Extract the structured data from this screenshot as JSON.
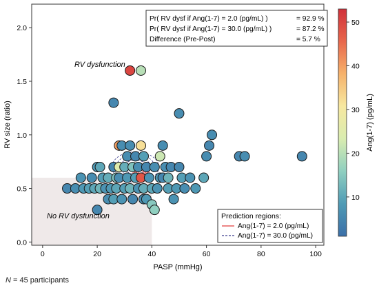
{
  "chart_data": {
    "type": "scatter",
    "xlabel": "PASP (mmHg)",
    "ylabel": "RV size (ratio)",
    "xlim": [
      -4,
      103
    ],
    "ylim": [
      -0.03,
      2.22
    ],
    "xticks": [
      "0",
      "20",
      "40",
      "60",
      "80",
      "100"
    ],
    "yticks": [
      "0.0",
      "0.5",
      "1.0",
      "1.5",
      "2.0"
    ],
    "grid": false,
    "annotations": {
      "rv_dysfunction": "RV dysfunction",
      "no_rv_dysfunction": "No RV dysfunction"
    },
    "probability_box": {
      "rows": [
        {
          "label": "Pr( RV dysf if Ang(1-7) = 2.0 (pg/mL) )",
          "value": "= 92.9 %"
        },
        {
          "label": "Pr( RV dysf if Ang(1-7) = 30.0 (pg/mL) )",
          "value": "= 87.2 %"
        },
        {
          "label": "Difference (Pre-Post)",
          "value": "= 5.7 %"
        }
      ]
    },
    "legend": {
      "title": "Prediction regions:",
      "placement": "bottom-right",
      "items": [
        {
          "label": "Ang(1-7) = 2.0 (pg/mL)",
          "color": "#e03c3c",
          "style": "solid"
        },
        {
          "label": "Ang(1-7) = 30.0 (pg/mL)",
          "color": "#3a3a8c",
          "style": "dashed"
        }
      ]
    },
    "colorbar": {
      "label": "Ang(1-7) (pg/mL)",
      "min": 1,
      "max": 53,
      "ticks": [
        "10",
        "20",
        "30",
        "40",
        "50"
      ],
      "colors": [
        "#3b6fa8",
        "#4f9bb5",
        "#8fcfc0",
        "#d9ecb0",
        "#f7e8a0",
        "#f6b26b",
        "#e8674c",
        "#d0303a"
      ]
    },
    "normal_region": {
      "x": [
        -4,
        40
      ],
      "y": [
        -0.03,
        0.6
      ],
      "color": "#efe9e9"
    },
    "contours": {
      "red_center": [
        36,
        0.65
      ],
      "blue_center": [
        34,
        0.7
      ]
    },
    "points": [
      {
        "x": 9,
        "y": 0.5,
        "c": 5
      },
      {
        "x": 12,
        "y": 0.5,
        "c": 6
      },
      {
        "x": 14,
        "y": 0.6,
        "c": 7
      },
      {
        "x": 15,
        "y": 0.5,
        "c": 8
      },
      {
        "x": 17,
        "y": 0.5,
        "c": 9
      },
      {
        "x": 18,
        "y": 0.6,
        "c": 6
      },
      {
        "x": 19,
        "y": 0.5,
        "c": 10
      },
      {
        "x": 20,
        "y": 0.3,
        "c": 5
      },
      {
        "x": 20,
        "y": 0.7,
        "c": 8
      },
      {
        "x": 21,
        "y": 0.5,
        "c": 12
      },
      {
        "x": 21,
        "y": 0.7,
        "c": 10
      },
      {
        "x": 22,
        "y": 0.6,
        "c": 9
      },
      {
        "x": 23,
        "y": 0.5,
        "c": 7
      },
      {
        "x": 24,
        "y": 0.6,
        "c": 11
      },
      {
        "x": 24,
        "y": 0.4,
        "c": 6
      },
      {
        "x": 25,
        "y": 0.5,
        "c": 8
      },
      {
        "x": 26,
        "y": 0.7,
        "c": 5
      },
      {
        "x": 26,
        "y": 1.3,
        "c": 5
      },
      {
        "x": 26,
        "y": 0.4,
        "c": 9
      },
      {
        "x": 27,
        "y": 0.6,
        "c": 14
      },
      {
        "x": 27,
        "y": 0.5,
        "c": 10
      },
      {
        "x": 28,
        "y": 0.9,
        "c": 40
      },
      {
        "x": 28,
        "y": 0.7,
        "c": 25
      },
      {
        "x": 28,
        "y": 0.6,
        "c": 6
      },
      {
        "x": 29,
        "y": 0.9,
        "c": 6
      },
      {
        "x": 29,
        "y": 0.4,
        "c": 7
      },
      {
        "x": 30,
        "y": 0.5,
        "c": 9
      },
      {
        "x": 30,
        "y": 0.7,
        "c": 11
      },
      {
        "x": 31,
        "y": 0.6,
        "c": 8
      },
      {
        "x": 31,
        "y": 0.8,
        "c": 6
      },
      {
        "x": 32,
        "y": 1.6,
        "c": 50
      },
      {
        "x": 32,
        "y": 0.9,
        "c": 6
      },
      {
        "x": 32,
        "y": 0.5,
        "c": 12
      },
      {
        "x": 33,
        "y": 0.4,
        "c": 5
      },
      {
        "x": 33,
        "y": 0.7,
        "c": 14
      },
      {
        "x": 34,
        "y": 0.6,
        "c": 9
      },
      {
        "x": 34,
        "y": 0.8,
        "c": 5
      },
      {
        "x": 35,
        "y": 0.5,
        "c": 7
      },
      {
        "x": 35,
        "y": 0.7,
        "c": 6
      },
      {
        "x": 36,
        "y": 1.6,
        "c": 20
      },
      {
        "x": 36,
        "y": 0.9,
        "c": 32
      },
      {
        "x": 36,
        "y": 0.6,
        "c": 48
      },
      {
        "x": 37,
        "y": 0.4,
        "c": 6
      },
      {
        "x": 37,
        "y": 0.5,
        "c": 11
      },
      {
        "x": 37,
        "y": 0.8,
        "c": 9
      },
      {
        "x": 38,
        "y": 0.7,
        "c": 5
      },
      {
        "x": 38,
        "y": 0.4,
        "c": 8
      },
      {
        "x": 39,
        "y": 0.6,
        "c": 7
      },
      {
        "x": 40,
        "y": 0.5,
        "c": 10
      },
      {
        "x": 40,
        "y": 0.35,
        "c": 15
      },
      {
        "x": 41,
        "y": 0.3,
        "c": 16
      },
      {
        "x": 41,
        "y": 0.7,
        "c": 6
      },
      {
        "x": 42,
        "y": 0.5,
        "c": 7
      },
      {
        "x": 43,
        "y": 0.6,
        "c": 8
      },
      {
        "x": 43,
        "y": 0.8,
        "c": 22
      },
      {
        "x": 44,
        "y": 0.9,
        "c": 6
      },
      {
        "x": 44,
        "y": 0.6,
        "c": 5
      },
      {
        "x": 45,
        "y": 0.7,
        "c": 6
      },
      {
        "x": 46,
        "y": 0.5,
        "c": 9
      },
      {
        "x": 46,
        "y": 0.6,
        "c": 12
      },
      {
        "x": 47,
        "y": 0.7,
        "c": 5
      },
      {
        "x": 48,
        "y": 0.4,
        "c": 7
      },
      {
        "x": 49,
        "y": 0.5,
        "c": 8
      },
      {
        "x": 50,
        "y": 1.2,
        "c": 6
      },
      {
        "x": 50,
        "y": 0.7,
        "c": 5
      },
      {
        "x": 51,
        "y": 0.6,
        "c": 9
      },
      {
        "x": 52,
        "y": 0.5,
        "c": 6
      },
      {
        "x": 54,
        "y": 0.6,
        "c": 7
      },
      {
        "x": 56,
        "y": 0.5,
        "c": 8
      },
      {
        "x": 59,
        "y": 0.6,
        "c": 10
      },
      {
        "x": 60,
        "y": 0.8,
        "c": 6
      },
      {
        "x": 61,
        "y": 0.9,
        "c": 5
      },
      {
        "x": 62,
        "y": 1.0,
        "c": 6
      },
      {
        "x": 72,
        "y": 0.8,
        "c": 5
      },
      {
        "x": 74,
        "y": 0.8,
        "c": 6
      },
      {
        "x": 95,
        "y": 0.8,
        "c": 5
      }
    ]
  },
  "footnote": {
    "n_label": "N",
    "n_text": " = 45 participants"
  }
}
